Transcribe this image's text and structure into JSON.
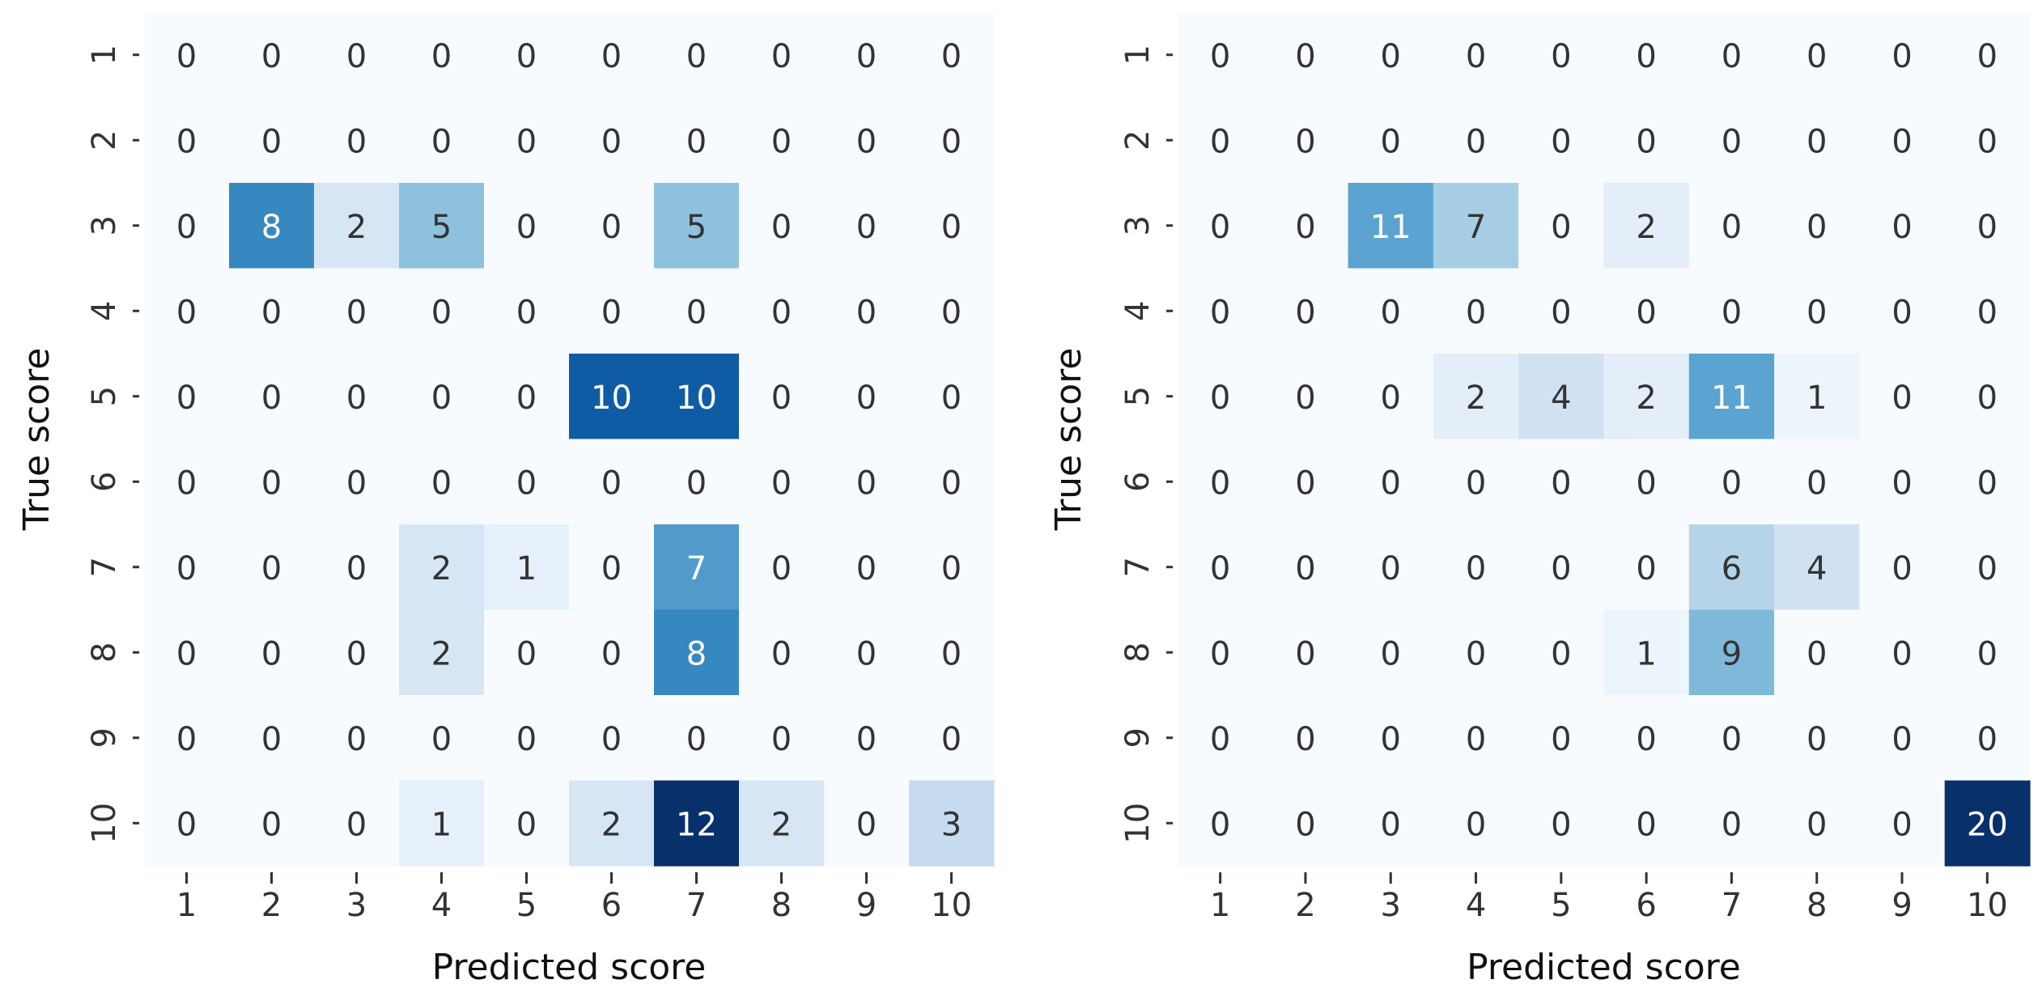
{
  "chart_data": [
    {
      "type": "heatmap",
      "xlabel": "Predicted score",
      "ylabel": "True score",
      "x_categories": [
        "1",
        "2",
        "3",
        "4",
        "5",
        "6",
        "7",
        "8",
        "9",
        "10"
      ],
      "y_categories": [
        "1",
        "2",
        "3",
        "4",
        "5",
        "6",
        "7",
        "8",
        "9",
        "10"
      ],
      "colormap": "Blues",
      "vmin": 0,
      "vmax": 12,
      "colorbar": false,
      "matrix": [
        [
          0,
          0,
          0,
          0,
          0,
          0,
          0,
          0,
          0,
          0
        ],
        [
          0,
          0,
          0,
          0,
          0,
          0,
          0,
          0,
          0,
          0
        ],
        [
          0,
          8,
          2,
          5,
          0,
          0,
          5,
          0,
          0,
          0
        ],
        [
          0,
          0,
          0,
          0,
          0,
          0,
          0,
          0,
          0,
          0
        ],
        [
          0,
          0,
          0,
          0,
          0,
          10,
          10,
          0,
          0,
          0
        ],
        [
          0,
          0,
          0,
          0,
          0,
          0,
          0,
          0,
          0,
          0
        ],
        [
          0,
          0,
          0,
          2,
          1,
          0,
          7,
          0,
          0,
          0
        ],
        [
          0,
          0,
          0,
          2,
          0,
          0,
          8,
          0,
          0,
          0
        ],
        [
          0,
          0,
          0,
          0,
          0,
          0,
          0,
          0,
          0,
          0
        ],
        [
          0,
          0,
          0,
          1,
          0,
          2,
          12,
          2,
          0,
          3
        ]
      ]
    },
    {
      "type": "heatmap",
      "xlabel": "Predicted score",
      "ylabel": "True score",
      "x_categories": [
        "1",
        "2",
        "3",
        "4",
        "5",
        "6",
        "7",
        "8",
        "9",
        "10"
      ],
      "y_categories": [
        "1",
        "2",
        "3",
        "4",
        "5",
        "6",
        "7",
        "8",
        "9",
        "10"
      ],
      "colormap": "Blues",
      "vmin": 0,
      "vmax": 20,
      "colorbar": false,
      "matrix": [
        [
          0,
          0,
          0,
          0,
          0,
          0,
          0,
          0,
          0,
          0
        ],
        [
          0,
          0,
          0,
          0,
          0,
          0,
          0,
          0,
          0,
          0
        ],
        [
          0,
          0,
          11,
          7,
          0,
          2,
          0,
          0,
          0,
          0
        ],
        [
          0,
          0,
          0,
          0,
          0,
          0,
          0,
          0,
          0,
          0
        ],
        [
          0,
          0,
          0,
          2,
          4,
          2,
          11,
          1,
          0,
          0
        ],
        [
          0,
          0,
          0,
          0,
          0,
          0,
          0,
          0,
          0,
          0
        ],
        [
          0,
          0,
          0,
          0,
          0,
          0,
          6,
          4,
          0,
          0
        ],
        [
          0,
          0,
          0,
          0,
          0,
          1,
          9,
          0,
          0,
          0
        ],
        [
          0,
          0,
          0,
          0,
          0,
          0,
          0,
          0,
          0,
          0
        ],
        [
          0,
          0,
          0,
          0,
          0,
          0,
          0,
          0,
          0,
          20
        ]
      ]
    }
  ]
}
